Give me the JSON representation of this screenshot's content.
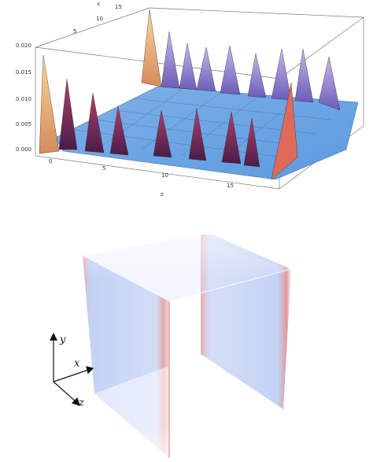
{
  "surface_plot": {
    "x_axis": {
      "label": "x",
      "ticks": [
        "5",
        "10",
        "15"
      ]
    },
    "vertical_axis": {
      "ticks": [
        "0.020",
        "0.015",
        "0.010",
        "0.005",
        "0.000"
      ]
    },
    "z_axis": {
      "label": "z",
      "ticks": [
        "0",
        "5",
        "10",
        "15"
      ]
    }
  },
  "volume_render": {
    "axes": [
      "y",
      "x",
      "z"
    ]
  }
}
